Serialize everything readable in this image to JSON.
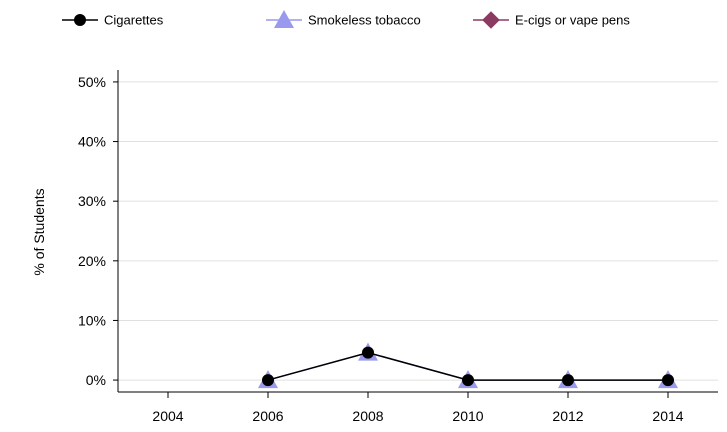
{
  "chart_data": {
    "type": "line",
    "title": "",
    "xlabel": "",
    "ylabel": "% of Students",
    "x": [
      2004,
      2006,
      2008,
      2010,
      2012,
      2014
    ],
    "x_tick_labels": [
      "2004",
      "2006",
      "2008",
      "2010",
      "2012",
      "2014"
    ],
    "xlim": [
      2003,
      2015
    ],
    "ylim": [
      -2,
      52
    ],
    "y_ticks": [
      0,
      10,
      20,
      30,
      40,
      50
    ],
    "y_tick_labels": [
      "0%",
      "10%",
      "20%",
      "30%",
      "40%",
      "50%"
    ],
    "grid": "horizontal",
    "legend_position": "top",
    "series": [
      {
        "name": "Cigarettes",
        "marker": "circle",
        "color": "#000000",
        "values": [
          null,
          0,
          4.6,
          0,
          0,
          0
        ]
      },
      {
        "name": "Smokeless tobacco",
        "marker": "triangle",
        "color": "#9999ee",
        "values": [
          null,
          0,
          4.6,
          0,
          0,
          0
        ]
      },
      {
        "name": "E-cigs or vape pens",
        "marker": "diamond",
        "color": "#8b3a62",
        "values": [
          null,
          null,
          null,
          null,
          null,
          null
        ]
      }
    ]
  }
}
